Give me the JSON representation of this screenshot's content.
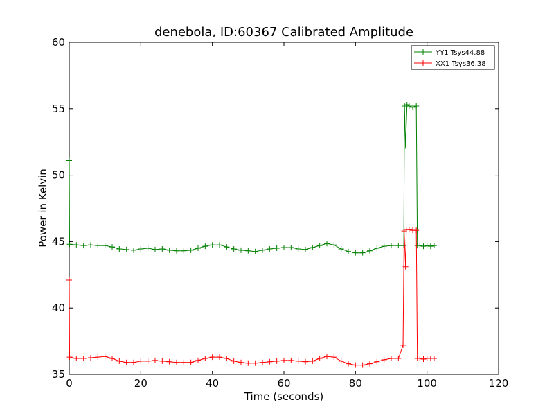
{
  "chart_data": {
    "type": "line",
    "title": "denebola, ID:60367 Calibrated Amplitude",
    "xlabel": "Time (seconds)",
    "ylabel": "Power in Kelvin",
    "xlim": [
      0,
      120
    ],
    "ylim": [
      35,
      60
    ],
    "xticks": [
      "0",
      "20",
      "40",
      "60",
      "80",
      "100",
      "120"
    ],
    "yticks": [
      "35",
      "40",
      "45",
      "50",
      "55",
      "60"
    ],
    "grid": false,
    "legend_position": "top-right",
    "marker": "+",
    "series": [
      {
        "name": "YY1 Tsys44.88",
        "color": "#008000",
        "points": [
          [
            0,
            51.1
          ],
          [
            0.1,
            44.8
          ],
          [
            2,
            44.75
          ],
          [
            4,
            44.7
          ],
          [
            6,
            44.75
          ],
          [
            8,
            44.7
          ],
          [
            10,
            44.7
          ],
          [
            12,
            44.6
          ],
          [
            14,
            44.45
          ],
          [
            16,
            44.4
          ],
          [
            18,
            44.35
          ],
          [
            20,
            44.45
          ],
          [
            22,
            44.5
          ],
          [
            24,
            44.4
          ],
          [
            26,
            44.45
          ],
          [
            28,
            44.35
          ],
          [
            30,
            44.3
          ],
          [
            32,
            44.3
          ],
          [
            34,
            44.35
          ],
          [
            36,
            44.5
          ],
          [
            38,
            44.65
          ],
          [
            40,
            44.75
          ],
          [
            42,
            44.75
          ],
          [
            44,
            44.6
          ],
          [
            46,
            44.45
          ],
          [
            48,
            44.35
          ],
          [
            50,
            44.3
          ],
          [
            52,
            44.25
          ],
          [
            54,
            44.35
          ],
          [
            56,
            44.45
          ],
          [
            58,
            44.5
          ],
          [
            60,
            44.55
          ],
          [
            62,
            44.55
          ],
          [
            64,
            44.45
          ],
          [
            66,
            44.4
          ],
          [
            68,
            44.55
          ],
          [
            70,
            44.7
          ],
          [
            72,
            44.85
          ],
          [
            74,
            44.75
          ],
          [
            76,
            44.45
          ],
          [
            78,
            44.25
          ],
          [
            80,
            44.15
          ],
          [
            82,
            44.15
          ],
          [
            84,
            44.3
          ],
          [
            86,
            44.5
          ],
          [
            88,
            44.65
          ],
          [
            90,
            44.7
          ],
          [
            92,
            44.7
          ],
          [
            93.5,
            44.7
          ],
          [
            93.7,
            55.2
          ],
          [
            94,
            52.2
          ],
          [
            94.4,
            55.3
          ],
          [
            95,
            55.2
          ],
          [
            96,
            55.1
          ],
          [
            97,
            55.2
          ],
          [
            97.3,
            44.7
          ],
          [
            98,
            44.7
          ],
          [
            99,
            44.65
          ],
          [
            100,
            44.7
          ],
          [
            101,
            44.65
          ],
          [
            102,
            44.7
          ]
        ]
      },
      {
        "name": "XX1 Tsys36.38",
        "color": "#ff0000",
        "points": [
          [
            0,
            42.1
          ],
          [
            0.1,
            36.3
          ],
          [
            2,
            36.2
          ],
          [
            4,
            36.2
          ],
          [
            6,
            36.25
          ],
          [
            8,
            36.3
          ],
          [
            10,
            36.35
          ],
          [
            12,
            36.2
          ],
          [
            14,
            36.0
          ],
          [
            16,
            35.9
          ],
          [
            18,
            35.9
          ],
          [
            20,
            36.0
          ],
          [
            22,
            36.0
          ],
          [
            24,
            36.05
          ],
          [
            26,
            36.0
          ],
          [
            28,
            35.95
          ],
          [
            30,
            35.9
          ],
          [
            32,
            35.9
          ],
          [
            34,
            35.9
          ],
          [
            36,
            36.05
          ],
          [
            38,
            36.2
          ],
          [
            40,
            36.3
          ],
          [
            42,
            36.3
          ],
          [
            44,
            36.2
          ],
          [
            46,
            36.0
          ],
          [
            48,
            35.9
          ],
          [
            50,
            35.85
          ],
          [
            52,
            35.85
          ],
          [
            54,
            35.9
          ],
          [
            56,
            35.95
          ],
          [
            58,
            36.0
          ],
          [
            60,
            36.05
          ],
          [
            62,
            36.05
          ],
          [
            64,
            36.0
          ],
          [
            66,
            35.95
          ],
          [
            68,
            36.0
          ],
          [
            70,
            36.2
          ],
          [
            72,
            36.35
          ],
          [
            74,
            36.3
          ],
          [
            76,
            36.0
          ],
          [
            78,
            35.8
          ],
          [
            80,
            35.7
          ],
          [
            82,
            35.7
          ],
          [
            84,
            35.8
          ],
          [
            86,
            35.95
          ],
          [
            88,
            36.1
          ],
          [
            90,
            36.2
          ],
          [
            92,
            36.2
          ],
          [
            93.3,
            37.2
          ],
          [
            93.6,
            45.8
          ],
          [
            94,
            43.1
          ],
          [
            94.2,
            45.9
          ],
          [
            95,
            45.9
          ],
          [
            96,
            45.85
          ],
          [
            97,
            45.85
          ],
          [
            97.3,
            36.2
          ],
          [
            98,
            36.2
          ],
          [
            99,
            36.15
          ],
          [
            100,
            36.2
          ],
          [
            101,
            36.2
          ],
          [
            102,
            36.2
          ]
        ]
      }
    ]
  }
}
